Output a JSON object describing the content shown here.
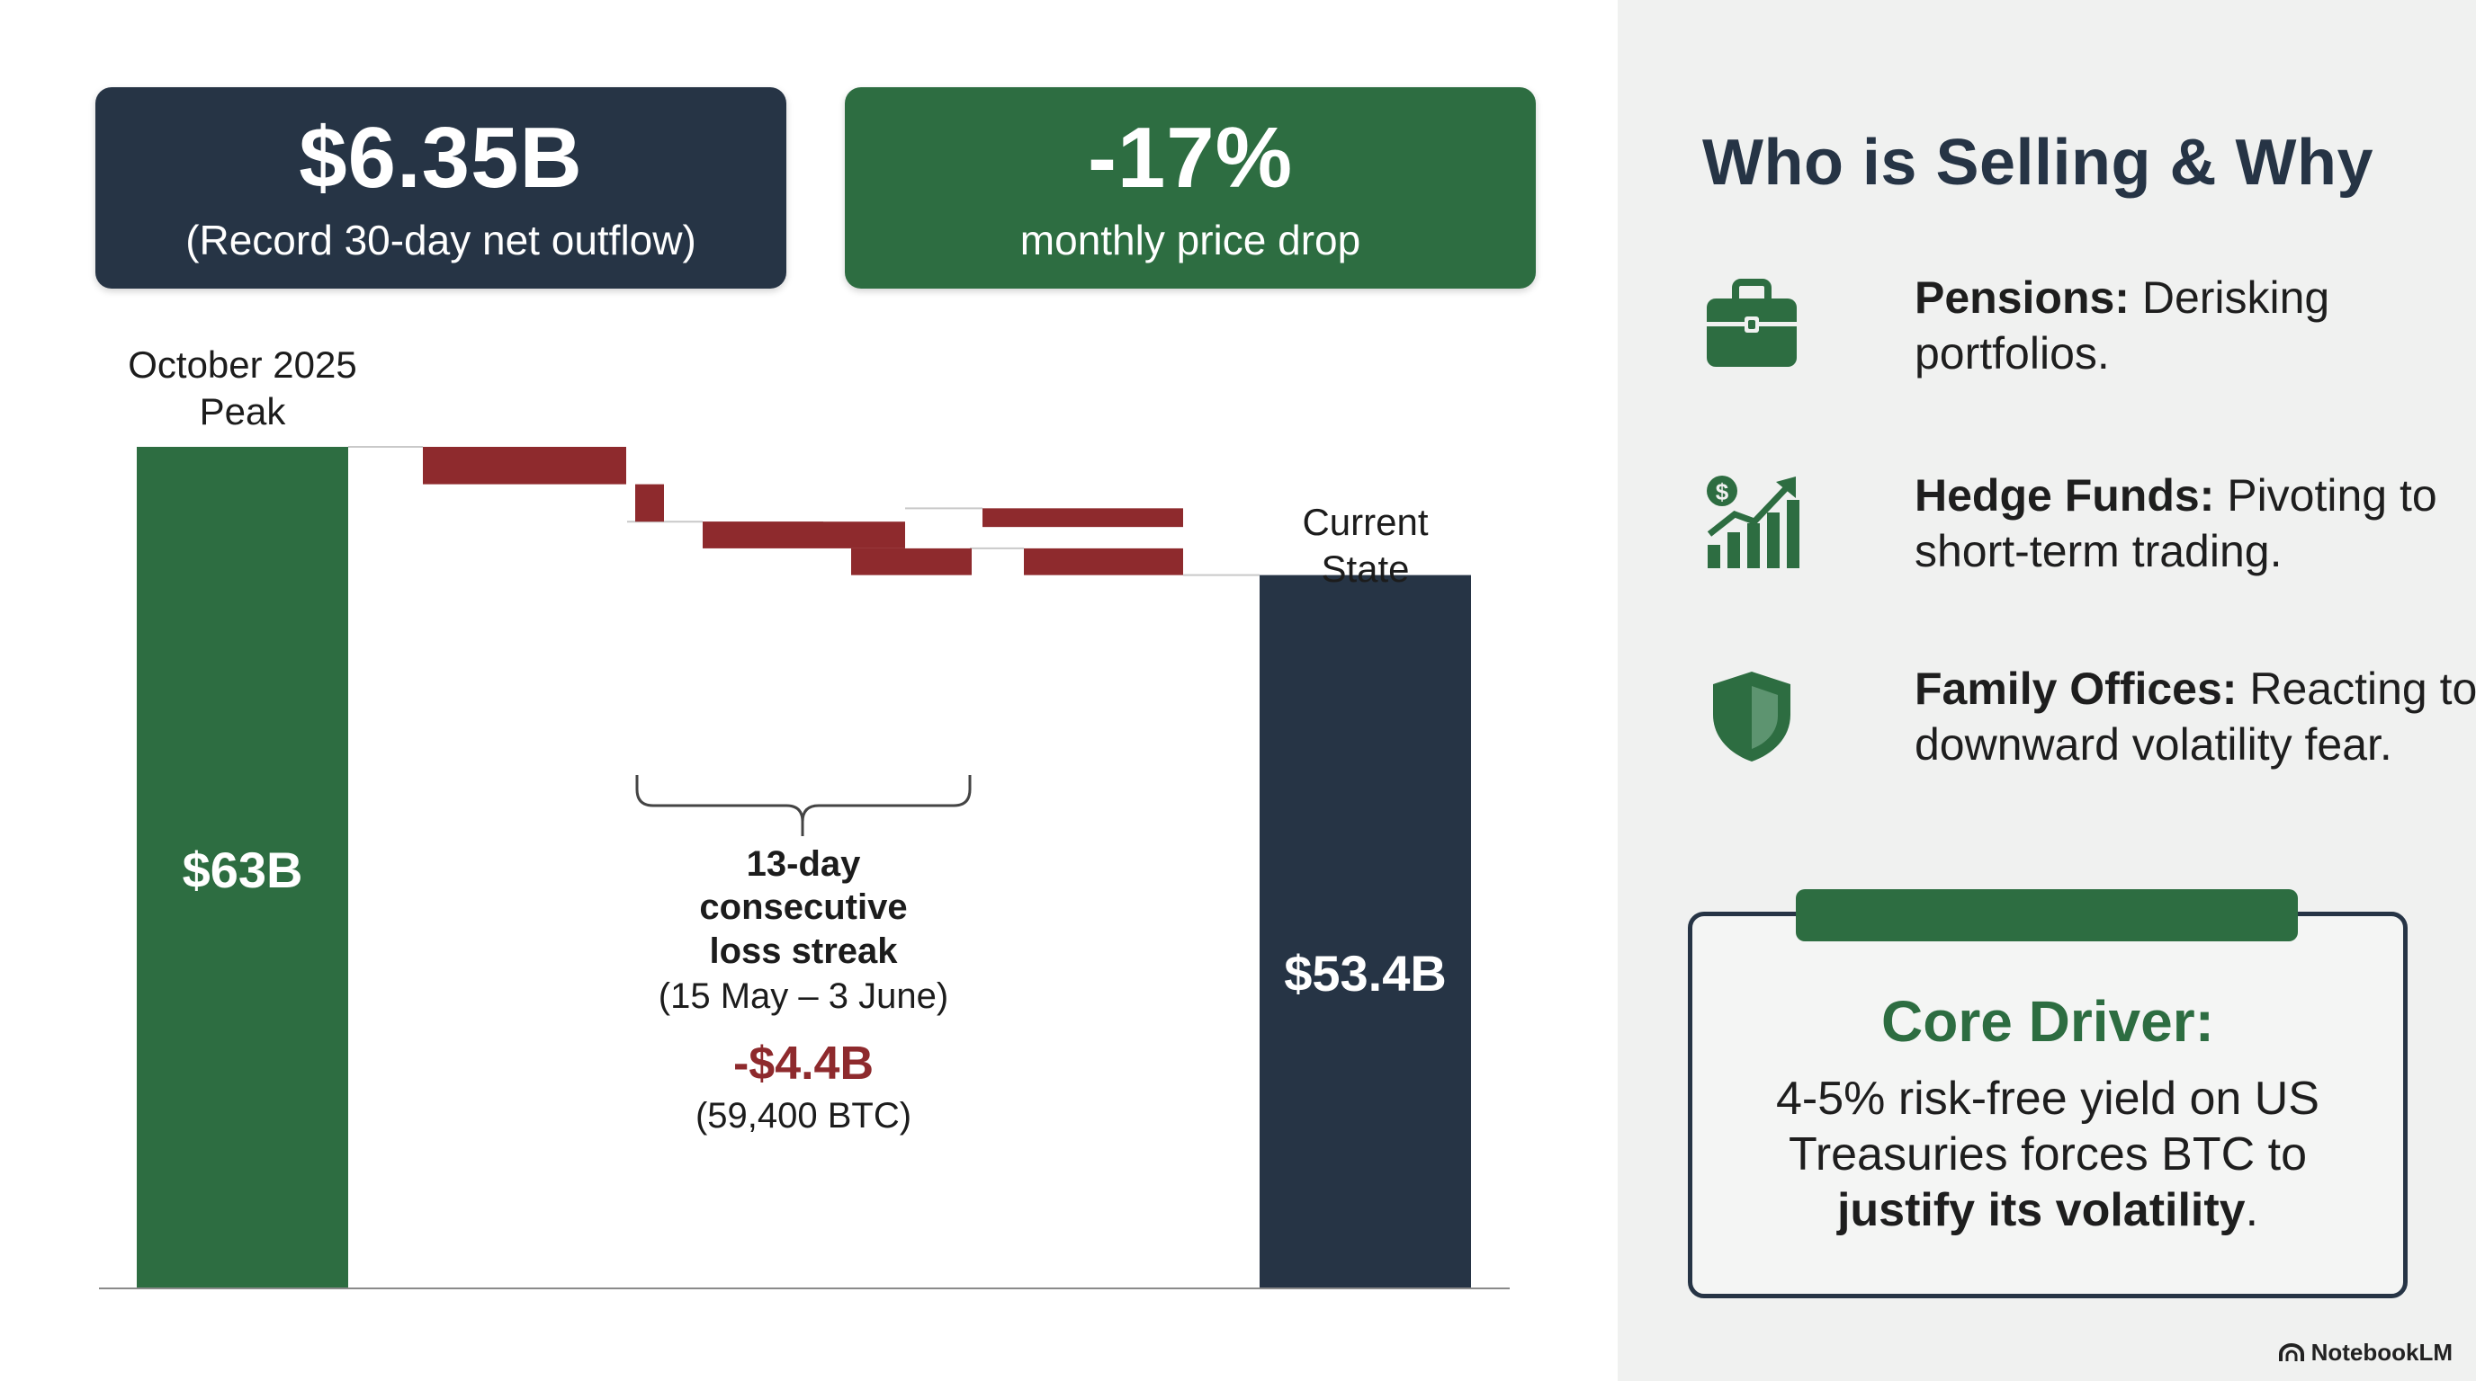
{
  "cards": {
    "outflow_value": "$6.35B",
    "outflow_label": "(Record 30-day net outflow)",
    "drop_value": "-17%",
    "drop_label": "monthly price drop"
  },
  "chart_data": {
    "type": "waterfall",
    "unit": "$B",
    "ylim": [
      0,
      63
    ],
    "start": {
      "label_line1": "October 2025",
      "label_line2": "Peak",
      "value": 63,
      "value_label": "$63B"
    },
    "steps": [
      {
        "from": 63.0,
        "to": 60.2
      },
      {
        "from": 60.2,
        "to": 57.4
      },
      {
        "from": 57.4,
        "to": 55.4
      },
      {
        "from": 57.4,
        "to": 55.8
      },
      {
        "from": 55.4,
        "to": 53.4
      },
      {
        "from": 58.4,
        "to": 57.0
      },
      {
        "from": 55.4,
        "to": 53.4
      }
    ],
    "end": {
      "label_line1": "Current",
      "label_line2": "State",
      "value": 53.4,
      "value_label": "$53.4B"
    },
    "annotation": {
      "line1": "13-day",
      "line2": "consecutive",
      "line3": "loss streak",
      "dates": "(15 May – 3 June)",
      "amount": "-$4.4B",
      "btc": "(59,400 BTC)"
    },
    "colors": {
      "peak": "#2d6d41",
      "loss": "#8e2a2d",
      "current": "#263445"
    }
  },
  "sidebar": {
    "title": "Who is Selling & Why",
    "sellers": [
      {
        "icon": "briefcase-icon",
        "name": "Pensions:",
        "reason": " Derisking portfolios."
      },
      {
        "icon": "growth-chart-icon",
        "name": "Hedge Funds:",
        "reason": " Pivoting to short-term trading."
      },
      {
        "icon": "shield-icon",
        "name": "Family Offices:",
        "reason": " Reacting to downward volatility fear."
      }
    ],
    "core": {
      "title": "Core Driver:",
      "body_plain": "4-5% risk-free yield on US Treasuries forces BTC to ",
      "body_bold": "justify its volatility",
      "body_end": "."
    }
  },
  "brand": "NotebookLM"
}
